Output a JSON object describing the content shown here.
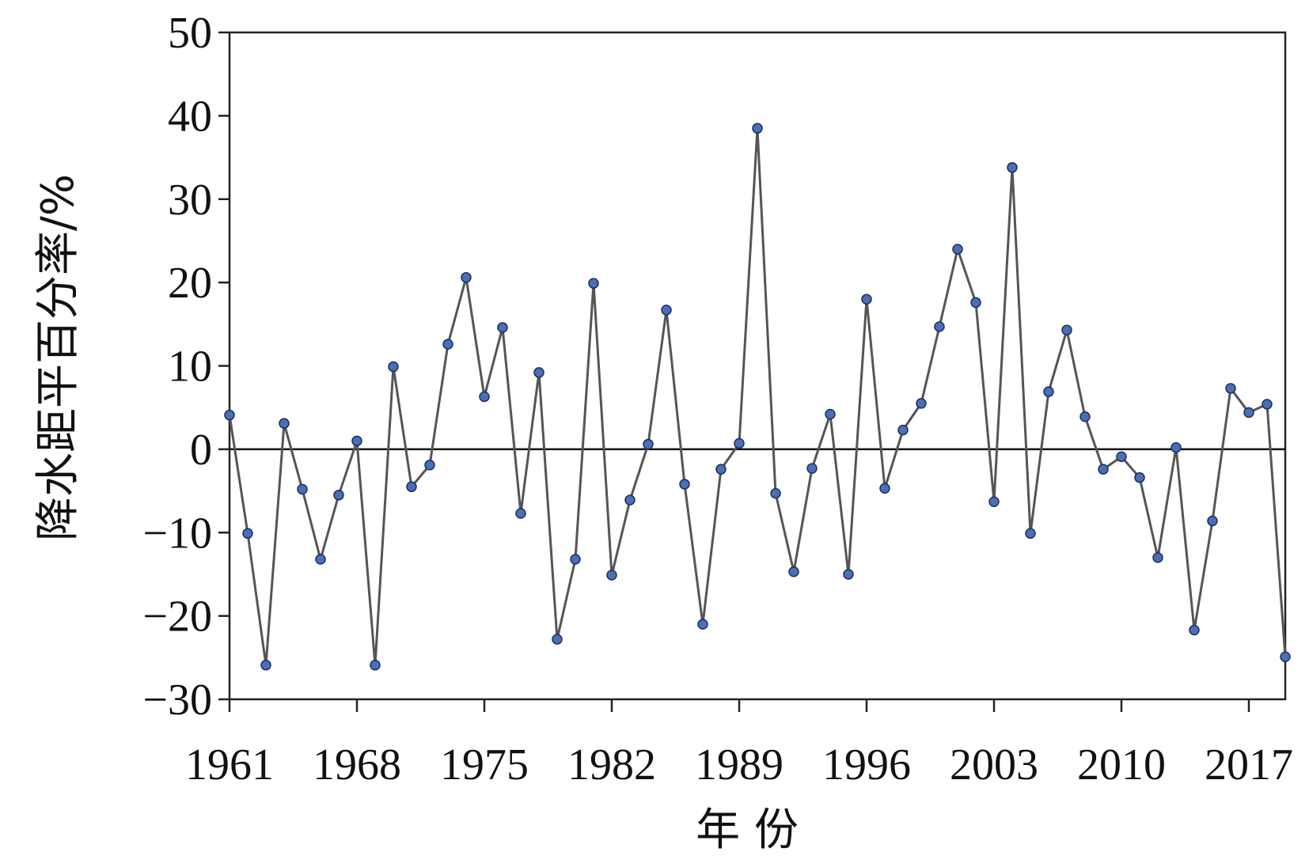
{
  "chart_data": {
    "type": "line",
    "title": "",
    "xlabel": "年 份",
    "ylabel": "降水距平百分率/%",
    "xlim": [
      1961,
      2019
    ],
    "ylim": [
      -30,
      50
    ],
    "y_ticks": [
      50,
      40,
      30,
      20,
      10,
      0,
      -10,
      -20,
      -30
    ],
    "y_tick_labels": [
      "50",
      "40",
      "30",
      "20",
      "10",
      "0",
      "−10",
      "−20",
      "−30"
    ],
    "x_ticks": [
      1961,
      1968,
      1975,
      1982,
      1989,
      1996,
      2003,
      2010,
      2017
    ],
    "x_tick_labels": [
      "1961",
      "1968",
      "1975",
      "1982",
      "1989",
      "1996",
      "2003",
      "2010",
      "2017"
    ],
    "grid": false,
    "legend": "none",
    "zero_line": true,
    "colors": {
      "line": "#555555",
      "marker_fill": "#4a6fb5",
      "marker_stroke": "#1c2f5e",
      "axis": "#222222"
    },
    "series": [
      {
        "x": [
          1961,
          1962,
          1963,
          1964,
          1965,
          1966,
          1967,
          1968,
          1969,
          1970,
          1971,
          1972,
          1973,
          1974,
          1975,
          1976,
          1977,
          1978,
          1979,
          1980,
          1981,
          1982,
          1983,
          1984,
          1985,
          1986,
          1987,
          1988,
          1989,
          1990,
          1991,
          1992,
          1993,
          1994,
          1995,
          1996,
          1997,
          1998,
          1999,
          2000,
          2001,
          2002,
          2003,
          2004,
          2005,
          2006,
          2007,
          2008,
          2009,
          2010,
          2011,
          2012,
          2013,
          2014,
          2015,
          2016,
          2017,
          2018,
          2019
        ],
        "values": [
          4.1,
          -10.1,
          -25.9,
          3.1,
          -4.8,
          -13.2,
          -5.5,
          1.0,
          -25.9,
          9.9,
          -4.5,
          -1.9,
          12.6,
          20.6,
          6.3,
          14.6,
          -7.7,
          9.2,
          -22.8,
          -13.2,
          19.9,
          -15.1,
          -6.1,
          0.6,
          16.7,
          -4.2,
          -21.0,
          -2.4,
          0.7,
          38.5,
          -5.3,
          -14.7,
          -2.3,
          4.2,
          -15.0,
          18.0,
          -4.7,
          2.3,
          5.5,
          14.7,
          24.0,
          17.6,
          -6.3,
          33.8,
          -10.1,
          6.9,
          14.3,
          3.9,
          -2.4,
          -0.9,
          -3.4,
          -13.0,
          0.2,
          -21.7,
          -8.6,
          7.3,
          4.4,
          5.4,
          -24.9
        ]
      }
    ]
  }
}
